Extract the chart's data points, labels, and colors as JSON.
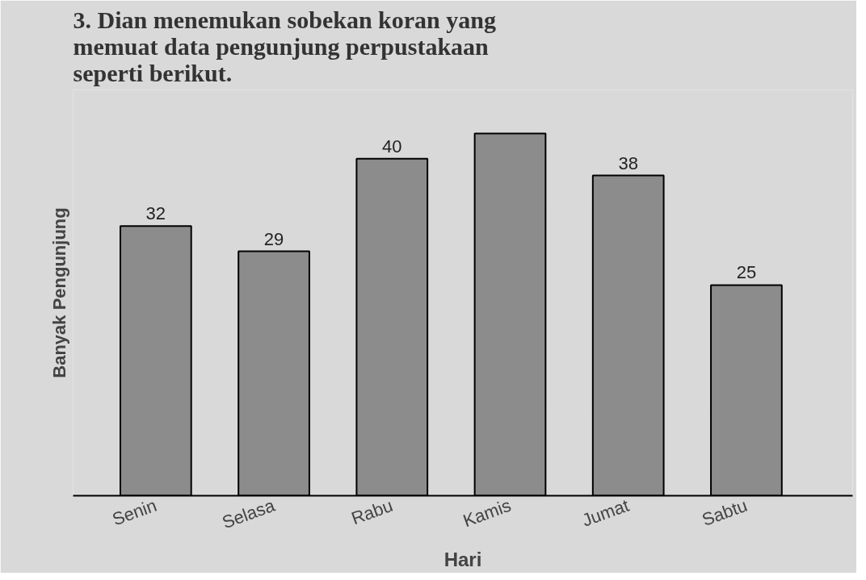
{
  "chart_data": {
    "type": "bar",
    "title": "3. Dian menemukan sobekan koran yang\nmemuat data pengunjung perpustakaan\nseperti berikut.",
    "xlabel": "Hari",
    "ylabel": "Banyak Pengunjung",
    "categories": [
      "Senin",
      "Selasa",
      "Rabu",
      "Kamis",
      "Jumat",
      "Sabtu"
    ],
    "values": [
      32,
      29,
      40,
      43,
      38,
      25
    ],
    "value_labels": [
      "32",
      "29",
      "40",
      null,
      "38",
      "25"
    ],
    "color": "#8c8c8c",
    "grid": false
  }
}
